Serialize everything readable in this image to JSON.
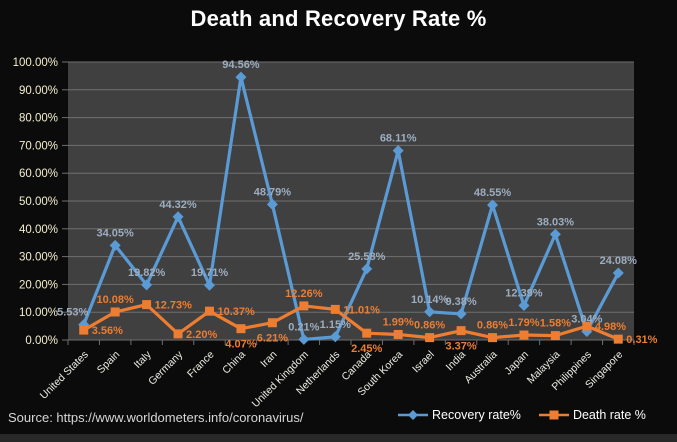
{
  "chart_data": {
    "type": "line",
    "title": "Death and Recovery Rate %",
    "categories": [
      "United States",
      "Spain",
      "Italy",
      "Germany",
      "France",
      "China",
      "Iran",
      "United Kingdom",
      "Netherlands",
      "Canada",
      "South Korea",
      "Israel",
      "India",
      "Australia",
      "Japan",
      "Malaysia",
      "Philippines",
      "Singapore"
    ],
    "series": [
      {
        "name": "Recovery rate%",
        "marker": "diamond",
        "color": "#5B9BD5",
        "label_color": "#9DADC0",
        "values": [
          5.53,
          34.05,
          19.82,
          44.32,
          19.71,
          94.56,
          48.79,
          0.21,
          1.15,
          25.58,
          68.11,
          10.14,
          9.38,
          48.55,
          12.39,
          38.03,
          3.04,
          24.08
        ],
        "label_placement": [
          "above-left",
          "above",
          "above",
          "above",
          "above",
          "above",
          "above",
          "above",
          "above",
          "above",
          "above",
          "above",
          "above",
          "above",
          "above",
          "above",
          "above",
          "above"
        ]
      },
      {
        "name": "Death rate %",
        "marker": "square",
        "color": "#ED7D31",
        "label_color": "#ED7D31",
        "values": [
          3.56,
          10.08,
          12.73,
          2.2,
          10.37,
          4.07,
          6.21,
          12.26,
          11.01,
          2.45,
          1.99,
          0.86,
          3.37,
          0.86,
          1.79,
          1.58,
          4.98,
          0.31
        ],
        "label_placement": [
          "right",
          "above",
          "right",
          "right",
          "right",
          "below",
          "below",
          "above",
          "right",
          "below",
          "above",
          "above",
          "below",
          "above",
          "above",
          "above",
          "right",
          "right"
        ]
      }
    ],
    "ylim": [
      0,
      100
    ],
    "y_tick_step": 10,
    "y_tick_suffix": "%",
    "grid": true,
    "legend_position": "bottom-right",
    "colors": {
      "page_bg": "#0b0b0b",
      "plot_bg": "#404040",
      "gridline": "#6f6f6f",
      "y_tick_label": "#f5efcf",
      "x_tick_label": "#ececе4",
      "title": "#ffffff"
    }
  },
  "source": {
    "text": "Source: https://www.worldometers.info/coronavirus/"
  }
}
